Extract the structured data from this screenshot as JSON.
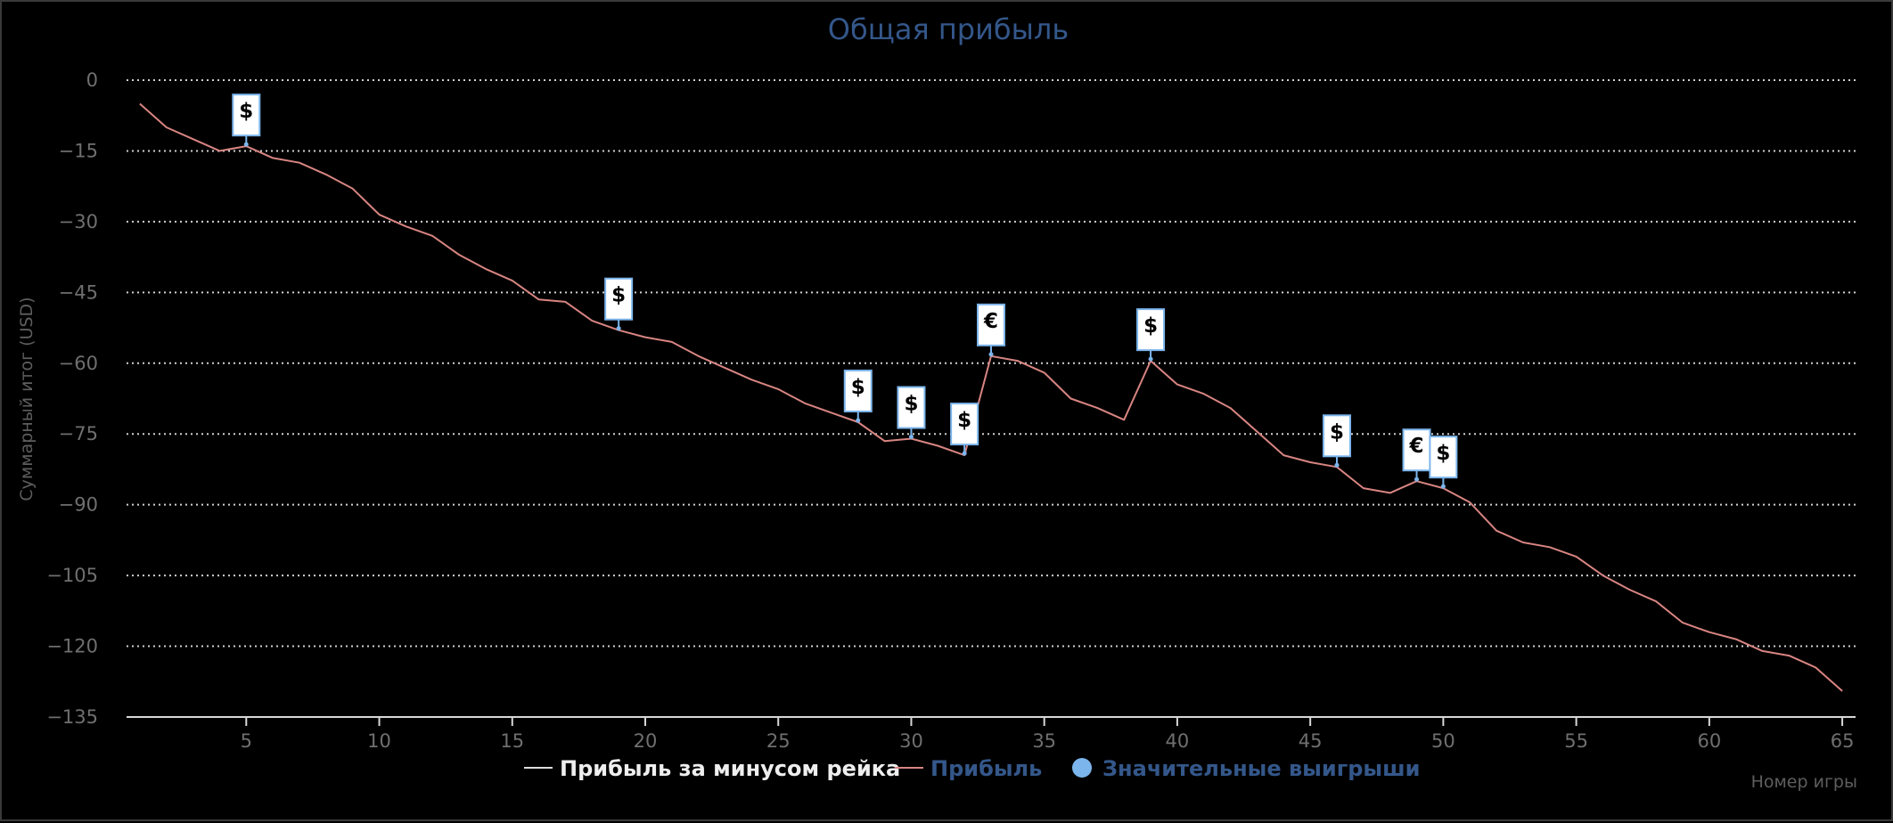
{
  "chart_data": {
    "type": "line",
    "title": "Общая прибыль",
    "xlabel": "Номер игры",
    "ylabel": "Суммарный итог (USD)",
    "xlim": [
      0.5,
      65.5
    ],
    "ylim": [
      -135,
      0
    ],
    "x_ticks": [
      5,
      10,
      15,
      20,
      25,
      30,
      35,
      40,
      45,
      50,
      55,
      60,
      65
    ],
    "y_ticks": [
      0,
      -15,
      -30,
      -45,
      -60,
      -75,
      -90,
      -105,
      -120,
      -135
    ],
    "grid": "horizontal dotted",
    "legend_position": "bottom-center",
    "series": [
      {
        "name": "Прибыль за минусом рейка",
        "color": "#dddddd",
        "visible": false,
        "values": []
      },
      {
        "name": "Прибыль",
        "color": "#d88582",
        "x": [
          1,
          2,
          3,
          4,
          5,
          6,
          7,
          8,
          9,
          10,
          11,
          12,
          13,
          14,
          15,
          16,
          17,
          18,
          19,
          20,
          21,
          22,
          23,
          24,
          25,
          26,
          27,
          28,
          29,
          30,
          31,
          32,
          33,
          34,
          35,
          36,
          37,
          38,
          39,
          40,
          41,
          42,
          43,
          44,
          45,
          46,
          47,
          48,
          49,
          50,
          51,
          52,
          53,
          54,
          55,
          56,
          57,
          58,
          59,
          60,
          61,
          62,
          63,
          64,
          65
        ],
        "values": [
          -5,
          -10,
          -12.5,
          -15,
          -14,
          -16.5,
          -17.5,
          -20,
          -23,
          -28.5,
          -31,
          -33,
          -37,
          -40,
          -42.5,
          -46.5,
          -47,
          -51,
          -53,
          -54.5,
          -55.5,
          -58.5,
          -61,
          -63.5,
          -65.5,
          -68.5,
          -70.5,
          -72.5,
          -76.5,
          -76,
          -77.5,
          -79.5,
          -58.5,
          -59.5,
          -62,
          -67.5,
          -69.5,
          -72,
          -59.5,
          -64.5,
          -66.5,
          -69.5,
          -74.5,
          -79.5,
          -81,
          -82,
          -86.5,
          -87.5,
          -85,
          -86.5,
          -89.5,
          -95.5,
          -98,
          -99,
          -101,
          -105,
          -108,
          -110.5,
          -115,
          -117,
          -118.5,
          -121,
          -122,
          -124.5,
          -129.5
        ]
      }
    ],
    "big_wins": {
      "name": "Значительные выигрыши",
      "color": "#7cb5ec",
      "points": [
        {
          "x": 5,
          "y": -14,
          "symbol": "$"
        },
        {
          "x": 19,
          "y": -53,
          "symbol": "$"
        },
        {
          "x": 28,
          "y": -72.5,
          "symbol": "$"
        },
        {
          "x": 30,
          "y": -76,
          "symbol": "$"
        },
        {
          "x": 32,
          "y": -79.5,
          "symbol": "$"
        },
        {
          "x": 33,
          "y": -58.5,
          "symbol": "€"
        },
        {
          "x": 39,
          "y": -59.5,
          "symbol": "$"
        },
        {
          "x": 46,
          "y": -82,
          "symbol": "$"
        },
        {
          "x": 49,
          "y": -85,
          "symbol": "€"
        },
        {
          "x": 50,
          "y": -86.5,
          "symbol": "$"
        }
      ]
    }
  }
}
